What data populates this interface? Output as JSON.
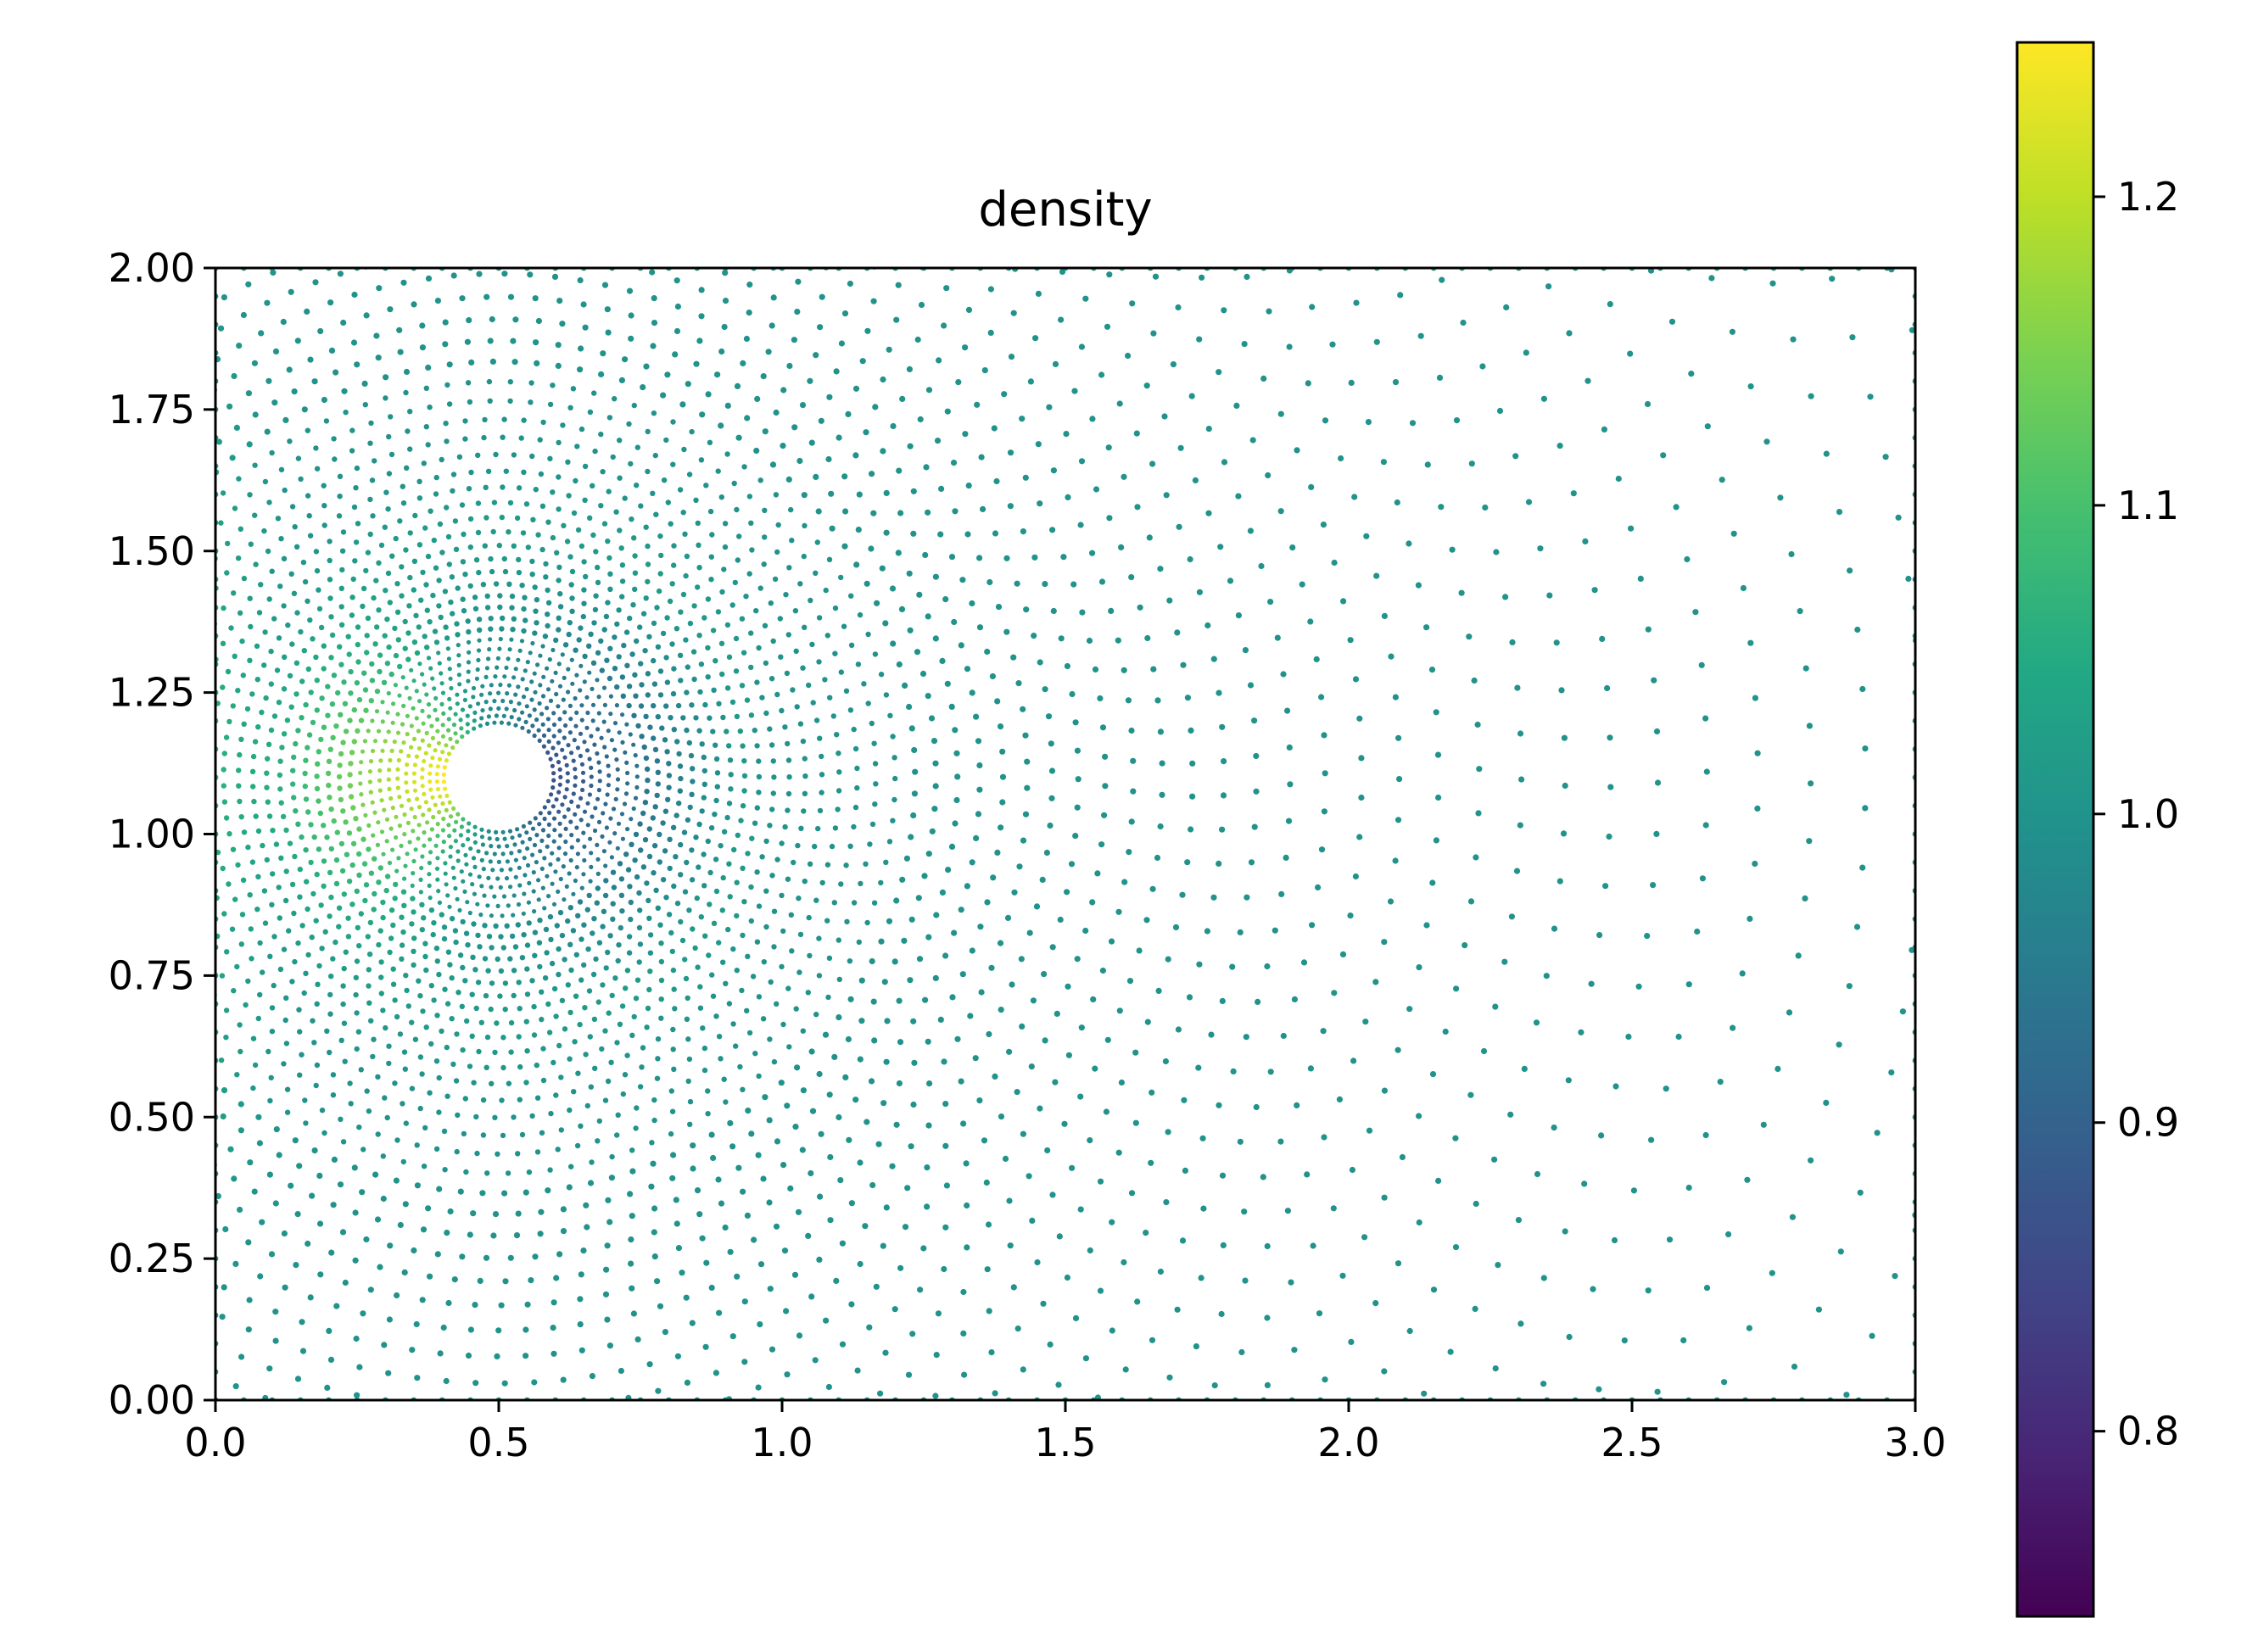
{
  "chart_data": {
    "type": "scatter",
    "title": "density",
    "xlabel": "",
    "ylabel": "",
    "xlim": [
      0.0,
      3.0
    ],
    "ylim": [
      0.0,
      2.0
    ],
    "x_ticks": [
      "0.0",
      "0.5",
      "1.0",
      "1.5",
      "2.0",
      "2.5",
      "3.0"
    ],
    "y_ticks": [
      "0.00",
      "0.25",
      "0.50",
      "0.75",
      "1.00",
      "1.25",
      "1.50",
      "1.75",
      "2.00"
    ],
    "x_tick_values": [
      0.0,
      0.5,
      1.0,
      1.5,
      2.0,
      2.5,
      3.0
    ],
    "y_tick_values": [
      0.0,
      0.25,
      0.5,
      0.75,
      1.0,
      1.25,
      1.5,
      1.75,
      2.0
    ],
    "grid": false,
    "colormap": "viridis",
    "obstacle": {
      "shape": "circle",
      "center": [
        0.5,
        1.1
      ],
      "radius": 0.085
    },
    "colorbar": {
      "vmin": 0.74,
      "vmax": 1.25,
      "ticks": [
        "0.8",
        "0.9",
        "1.0",
        "1.1",
        "1.2"
      ],
      "tick_values": [
        0.8,
        0.9,
        1.0,
        1.1,
        1.2
      ]
    },
    "field": {
      "background_value": 1.0,
      "upstream_value": 1.1,
      "stagnation_value": 1.22,
      "wake_value": 0.76,
      "point_rings": "concentric rings of sample points around the obstacle, sparser with distance"
    }
  }
}
